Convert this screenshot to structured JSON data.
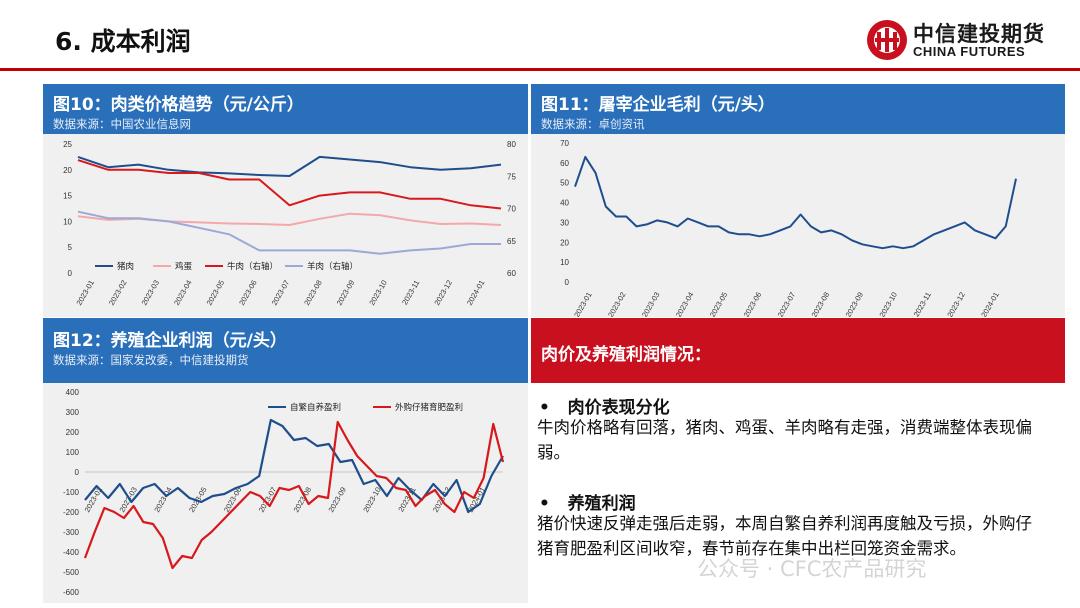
{
  "page": {
    "title": "6. 成本利润",
    "logo_cn": "中信建投期货",
    "logo_en": "CHINA FUTURES",
    "accent_red": "#c00000",
    "accent_blue": "#2a6fba",
    "watermark": "公众号 · CFC农产品研究"
  },
  "panels": {
    "fig10": {
      "title": "图10：肉类价格趋势（元/公斤）",
      "source": "数据来源：中国农业信息网"
    },
    "fig11": {
      "title": "图11：屠宰企业毛利（元/头）",
      "source": "数据来源：卓创资讯"
    },
    "fig12": {
      "title": "图12：养殖企业利润（元/头）",
      "source": "数据来源：国家发改委，中信建投期货"
    },
    "text": {
      "title": "肉价及养殖利润情况：",
      "b1_title": "肉价表现分化",
      "b1_text": "牛肉价格略有回落，猪肉、鸡蛋、羊肉略有走强，消费端整体表现偏弱。",
      "b2_title": "养殖利润",
      "b2_text": "猪价快速反弹走强后走弱，本周自繁自养利润再度触及亏损，外购仔猪育肥盈利区间收窄，春节前存在集中出栏回笼资金需求。"
    }
  },
  "chart_data": [
    {
      "type": "line",
      "title": "图10：肉类价格趋势（元/公斤）",
      "x_ticks": [
        "2023-01",
        "2023-02",
        "2023-03",
        "2023-04",
        "2023-05",
        "2023-06",
        "2023-07",
        "2023-08",
        "2023-09",
        "2023-10",
        "2023-11",
        "2023-12",
        "2024-01"
      ],
      "ylim": [
        0,
        25
      ],
      "y_ticks": [
        "25",
        "20",
        "15",
        "10",
        "5",
        "0"
      ],
      "y2lim": [
        60,
        80
      ],
      "y2_ticks": [
        "80",
        "75",
        "70",
        "65",
        "60"
      ],
      "legend": "bottom-inside",
      "series": [
        {
          "name": "猪肉",
          "axis": "left",
          "color": "#1f4e8c",
          "values": [
            22.5,
            20.5,
            21.0,
            20.0,
            19.5,
            19.3,
            19.0,
            18.8,
            22.5,
            22.0,
            21.5,
            20.5,
            20.0,
            20.3,
            21.0
          ]
        },
        {
          "name": "鸡蛋",
          "axis": "left",
          "color": "#f4a8a8",
          "values": [
            11.0,
            10.3,
            10.5,
            10.0,
            9.8,
            9.6,
            9.5,
            9.3,
            10.5,
            11.5,
            11.2,
            10.2,
            9.5,
            9.6,
            9.3
          ]
        },
        {
          "name": "牛肉（右轴）",
          "axis": "right",
          "color": "#d7191c",
          "values": [
            77.5,
            76.0,
            76.0,
            75.5,
            75.5,
            74.5,
            74.5,
            70.5,
            72.0,
            72.5,
            72.5,
            71.5,
            71.5,
            70.5,
            70.0
          ]
        },
        {
          "name": "羊肉（右轴）",
          "axis": "right",
          "color": "#9aa9d6",
          "values": [
            69.5,
            68.5,
            68.5,
            68.0,
            67.0,
            66.0,
            63.5,
            63.5,
            63.5,
            63.5,
            63.0,
            63.5,
            63.8,
            64.5,
            64.5
          ]
        }
      ]
    },
    {
      "type": "line",
      "title": "图11：屠宰企业毛利（元/头）",
      "x_ticks": [
        "2023-01",
        "2023-02",
        "2023-03",
        "2023-04",
        "2023-05",
        "2023-06",
        "2023-07",
        "2023-08",
        "2023-09",
        "2023-10",
        "2023-11",
        "2023-12",
        "2024-01"
      ],
      "ylim": [
        0,
        70
      ],
      "y_ticks": [
        "70",
        "60",
        "50",
        "40",
        "30",
        "20",
        "10",
        "0"
      ],
      "series": [
        {
          "name": "",
          "color": "#1f4e8c",
          "values": [
            48,
            63,
            55,
            38,
            33,
            33,
            28,
            29,
            31,
            30,
            28,
            32,
            30,
            28,
            28,
            25,
            24,
            24,
            23,
            24,
            26,
            28,
            34,
            28,
            25,
            26,
            24,
            21,
            19,
            18,
            17,
            18,
            17,
            18,
            21,
            24,
            26,
            28,
            30,
            26,
            24,
            22,
            28,
            52
          ]
        }
      ]
    },
    {
      "type": "line",
      "title": "图12：养殖企业利润（元/头）",
      "x_ticks": [
        "2023-02",
        "2023-03",
        "2023-04",
        "2023-05",
        "2023-06",
        "2023-07",
        "2023-08",
        "2023-09",
        "2023-10",
        "2023-11",
        "2023-12",
        "2024-01"
      ],
      "ylim": [
        -600,
        400
      ],
      "y_ticks": [
        "400",
        "300",
        "200",
        "100",
        "0",
        "-100",
        "-200",
        "-300",
        "-400",
        "-500",
        "-600"
      ],
      "legend": "top-inside",
      "series": [
        {
          "name": "自繁自养盈利",
          "color": "#1f4e8c",
          "values": [
            -140,
            -70,
            -130,
            -60,
            -150,
            -80,
            -60,
            -120,
            -80,
            -130,
            -150,
            -120,
            -110,
            -80,
            -60,
            -20,
            260,
            230,
            160,
            170,
            130,
            140,
            50,
            60,
            -60,
            -40,
            -120,
            -30,
            -90,
            -140,
            -60,
            -120,
            -40,
            -200,
            -160,
            -20,
            80
          ]
        },
        {
          "name": "外购仔猪育肥盈利",
          "color": "#d7191c",
          "values": [
            -430,
            -300,
            -180,
            -200,
            -230,
            -170,
            -250,
            -260,
            -330,
            -480,
            -420,
            -430,
            -340,
            -300,
            -250,
            -200,
            -150,
            -100,
            -120,
            -170,
            -80,
            -90,
            -70,
            -160,
            -120,
            -130,
            250,
            160,
            80,
            30,
            -20,
            -30,
            -80,
            -90,
            -170,
            -120,
            -90,
            -160,
            -200,
            -100,
            -130,
            -30,
            240,
            50
          ]
        }
      ]
    }
  ]
}
